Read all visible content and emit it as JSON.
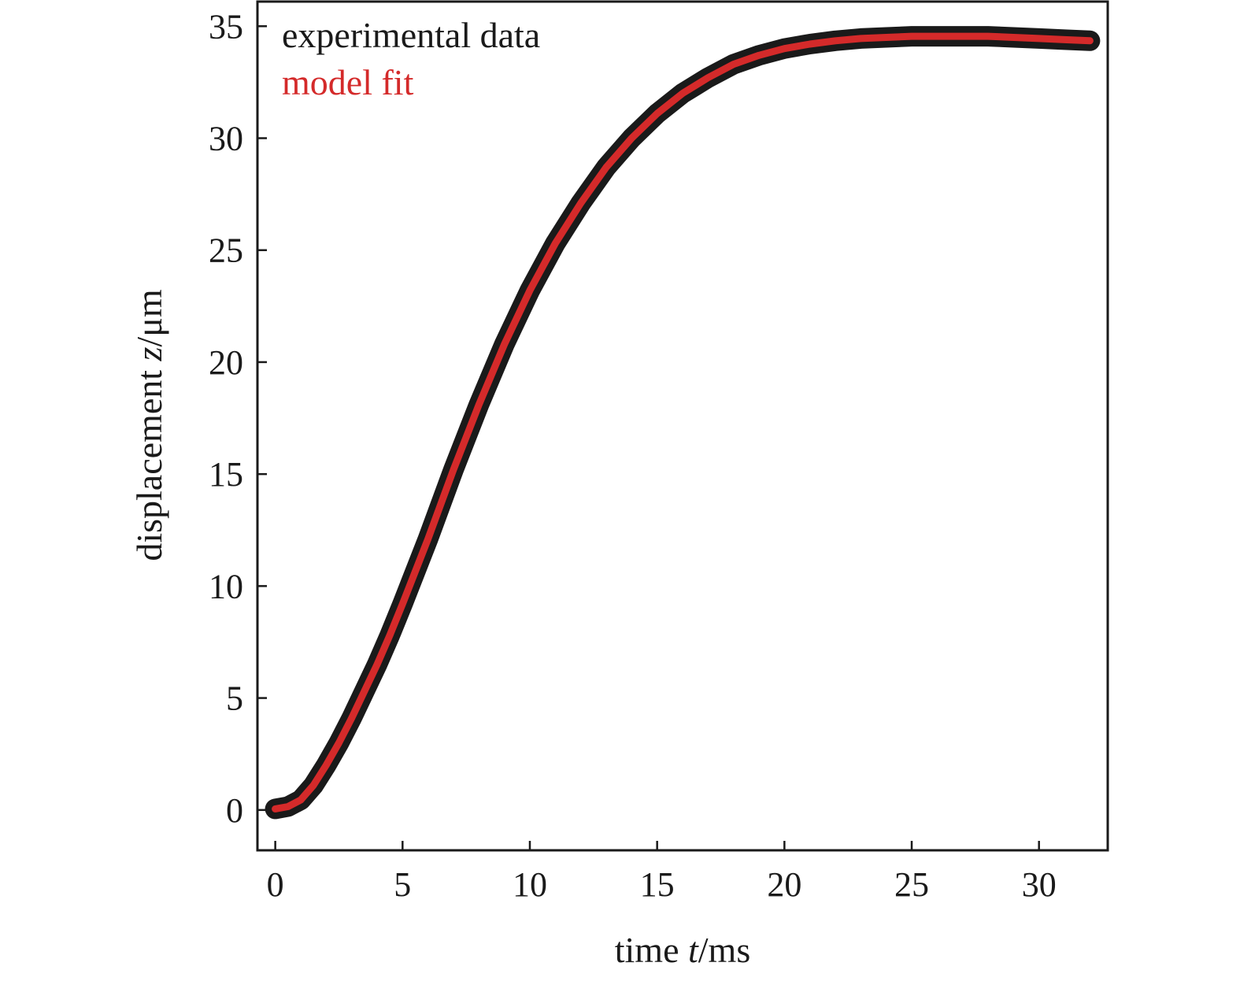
{
  "chart_data": {
    "type": "line",
    "title": "",
    "xlabel_parts": [
      "time ",
      "t",
      "/ms"
    ],
    "ylabel_parts": [
      "displacement ",
      "z",
      "/μm"
    ],
    "xlim": [
      -0.7,
      32.7
    ],
    "ylim": [
      -1.8,
      36.1
    ],
    "xticks": [
      0,
      5,
      10,
      15,
      20,
      25,
      30
    ],
    "yticks": [
      0,
      5,
      10,
      15,
      20,
      25,
      30,
      35
    ],
    "grid": false,
    "legend_position": "top-left",
    "series": [
      {
        "name": "experimental data",
        "color": "#1a1a1a",
        "x": [
          0,
          0.5,
          1,
          1.5,
          2,
          2.5,
          3,
          3.5,
          4,
          4.5,
          5,
          6,
          7,
          8,
          9,
          10,
          11,
          12,
          13,
          14,
          15,
          16,
          17,
          18,
          19,
          20,
          21,
          22,
          23,
          24,
          25,
          26,
          27,
          28,
          29,
          30,
          31,
          32
        ],
        "y": [
          0.05,
          0.15,
          0.45,
          1.1,
          2.0,
          3.0,
          4.1,
          5.3,
          6.5,
          7.8,
          9.2,
          12.1,
          15.2,
          18.1,
          20.8,
          23.2,
          25.3,
          27.1,
          28.7,
          30.0,
          31.1,
          32.0,
          32.7,
          33.3,
          33.7,
          34.0,
          34.2,
          34.35,
          34.45,
          34.5,
          34.55,
          34.55,
          34.55,
          34.55,
          34.5,
          34.45,
          34.4,
          34.35
        ]
      },
      {
        "name": "model fit",
        "color": "#d42a2a",
        "x": [
          0,
          0.5,
          1,
          1.5,
          2,
          2.5,
          3,
          3.5,
          4,
          4.5,
          5,
          6,
          7,
          8,
          9,
          10,
          11,
          12,
          13,
          14,
          15,
          16,
          17,
          18,
          19,
          20,
          21,
          22,
          23,
          24,
          25,
          26,
          27,
          28,
          29,
          30,
          31,
          32
        ],
        "y": [
          0.05,
          0.15,
          0.45,
          1.1,
          2.0,
          3.0,
          4.1,
          5.3,
          6.5,
          7.8,
          9.2,
          12.1,
          15.2,
          18.1,
          20.8,
          23.2,
          25.3,
          27.1,
          28.7,
          30.0,
          31.1,
          32.0,
          32.7,
          33.3,
          33.7,
          34.0,
          34.2,
          34.35,
          34.45,
          34.5,
          34.55,
          34.55,
          34.55,
          34.55,
          34.5,
          34.45,
          34.4,
          34.35
        ]
      }
    ]
  }
}
